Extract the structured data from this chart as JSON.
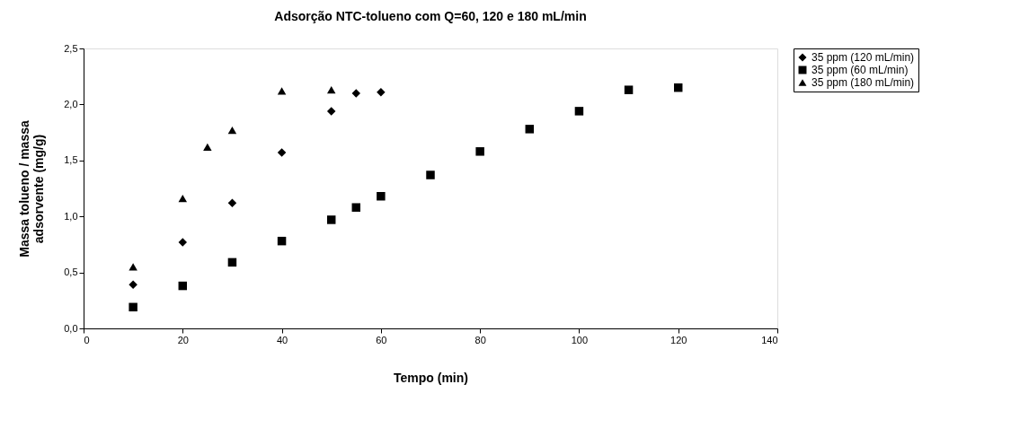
{
  "chart_data": {
    "type": "scatter",
    "title": "Adsorção NTC-tolueno com Q=60, 120 e 180 mL/min",
    "xlabel": "Tempo (min)",
    "ylabel": "Massa tolueno / massa adsorvente (mg/g)",
    "series": [
      {
        "name": "35 ppm (120 mL/min)",
        "color": "#000000",
        "marker": "diamond",
        "x": [
          10,
          20,
          30,
          40,
          50,
          55,
          60
        ],
        "values": [
          0.39,
          0.77,
          1.12,
          1.57,
          1.94,
          2.1,
          2.11
        ]
      },
      {
        "name": "35 ppm (60 mL/min)",
        "color": "#000000",
        "marker": "square",
        "x": [
          10,
          20,
          30,
          40,
          50,
          55,
          60,
          70,
          80,
          90,
          100,
          110,
          120
        ],
        "values": [
          0.19,
          0.38,
          0.59,
          0.78,
          0.97,
          1.08,
          1.18,
          1.37,
          1.58,
          1.78,
          1.94,
          2.13,
          2.15
        ]
      },
      {
        "name": "35 ppm (180 mL/min)",
        "color": "#000000",
        "marker": "triangle",
        "x": [
          10,
          20,
          25,
          30,
          40,
          50
        ],
        "values": [
          0.55,
          1.16,
          1.62,
          1.77,
          2.12,
          2.13
        ]
      }
    ],
    "xlim": [
      0,
      140
    ],
    "xticks": [
      0,
      20,
      40,
      60,
      80,
      100,
      120,
      140
    ],
    "ylim": [
      0,
      2.5
    ],
    "yticks": [
      {
        "value": 0,
        "label": "0,0"
      },
      {
        "value": 0.5,
        "label": "0,5"
      },
      {
        "value": 1,
        "label": "1,0"
      },
      {
        "value": 1.5,
        "label": "1,5"
      },
      {
        "value": 2,
        "label": "2,0"
      },
      {
        "value": 2.5,
        "label": "2,5"
      }
    ],
    "grid": false,
    "legend": "right"
  }
}
